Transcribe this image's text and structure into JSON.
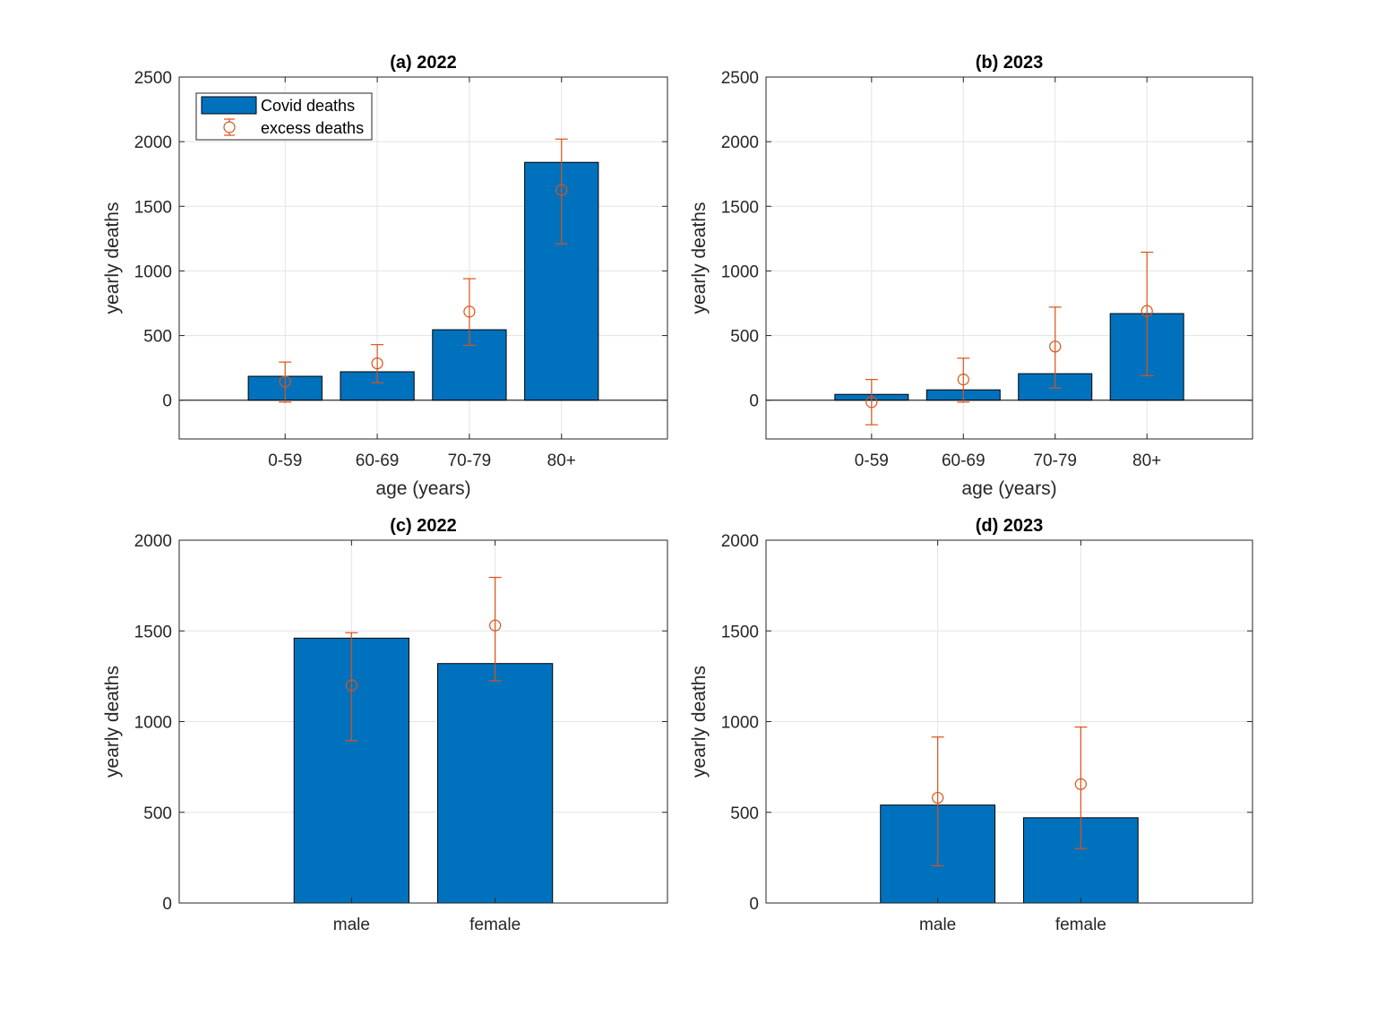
{
  "colors": {
    "bar": "#0072BD",
    "error": "#D95319",
    "grid": "#e3e3e3",
    "axis": "#262626"
  },
  "legend": {
    "bar_label": "Covid deaths",
    "error_label": "excess deaths",
    "location": "top-left of panel (a)"
  },
  "chart_data": [
    {
      "id": "a",
      "type": "bar",
      "title": "(a) 2022",
      "xlabel": "age (years)",
      "ylabel": "yearly deaths",
      "categories": [
        "0-59",
        "60-69",
        "70-79",
        "80+"
      ],
      "ylim": [
        -300,
        2500
      ],
      "yticks": [
        0,
        500,
        1000,
        1500,
        2000,
        2500
      ],
      "grid": true,
      "show_legend": true,
      "series": [
        {
          "name": "Covid deaths",
          "values": [
            185,
            220,
            545,
            1840
          ]
        },
        {
          "name": "excess deaths",
          "values": [
            145,
            285,
            685,
            1625
          ],
          "lower": [
            -15,
            135,
            425,
            1210
          ],
          "upper": [
            295,
            430,
            940,
            2020
          ]
        }
      ]
    },
    {
      "id": "b",
      "type": "bar",
      "title": "(b) 2023",
      "xlabel": "age (years)",
      "ylabel": "yearly deaths",
      "categories": [
        "0-59",
        "60-69",
        "70-79",
        "80+"
      ],
      "ylim": [
        -300,
        2500
      ],
      "yticks": [
        0,
        500,
        1000,
        1500,
        2000,
        2500
      ],
      "grid": true,
      "show_legend": false,
      "series": [
        {
          "name": "Covid deaths",
          "values": [
            45,
            80,
            205,
            670
          ]
        },
        {
          "name": "excess deaths",
          "values": [
            -15,
            160,
            415,
            690
          ],
          "lower": [
            -190,
            -15,
            95,
            190
          ],
          "upper": [
            160,
            325,
            720,
            1145
          ]
        }
      ]
    },
    {
      "id": "c",
      "type": "bar",
      "title": "(c) 2022",
      "xlabel": "",
      "ylabel": "yearly deaths",
      "categories": [
        "male",
        "female"
      ],
      "ylim": [
        0,
        2000
      ],
      "yticks": [
        0,
        500,
        1000,
        1500,
        2000
      ],
      "grid": true,
      "show_legend": false,
      "series": [
        {
          "name": "Covid deaths",
          "values": [
            1460,
            1320
          ]
        },
        {
          "name": "excess deaths",
          "values": [
            1200,
            1530
          ],
          "lower": [
            895,
            1225
          ],
          "upper": [
            1490,
            1795
          ]
        }
      ]
    },
    {
      "id": "d",
      "type": "bar",
      "title": "(d) 2023",
      "xlabel": "",
      "ylabel": "yearly deaths",
      "categories": [
        "male",
        "female"
      ],
      "ylim": [
        0,
        2000
      ],
      "yticks": [
        0,
        500,
        1000,
        1500,
        2000
      ],
      "grid": true,
      "show_legend": false,
      "series": [
        {
          "name": "Covid deaths",
          "values": [
            540,
            470
          ]
        },
        {
          "name": "excess deaths",
          "values": [
            580,
            655
          ],
          "lower": [
            205,
            300
          ],
          "upper": [
            915,
            970
          ]
        }
      ]
    }
  ]
}
